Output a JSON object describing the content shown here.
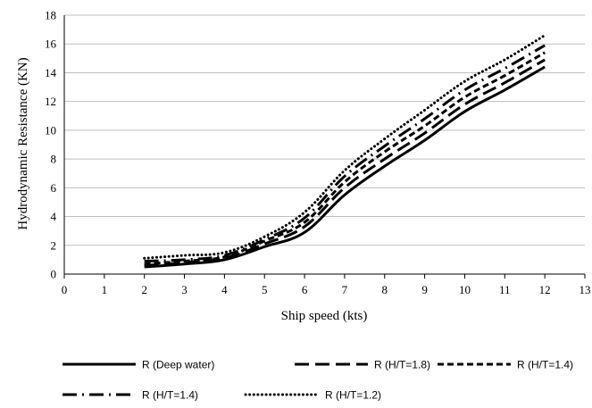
{
  "chart_data": {
    "type": "line",
    "title": "",
    "xlabel": "Ship speed (kts)",
    "ylabel": "Hydrodynamic Resistance (KN)",
    "xlim": [
      0,
      13
    ],
    "ylim": [
      0,
      18
    ],
    "x_ticks": [
      "0",
      "1",
      "2",
      "3",
      "4",
      "5",
      "6",
      "7",
      "8",
      "9",
      "10",
      "11",
      "12",
      "13"
    ],
    "y_ticks": [
      "0",
      "2",
      "4",
      "6",
      "8",
      "10",
      "12",
      "14",
      "16",
      "18"
    ],
    "grid": "horizontal",
    "legend_position": "bottom",
    "x": [
      2,
      3,
      4,
      5,
      6,
      7,
      8,
      9,
      10,
      11,
      12
    ],
    "series": [
      {
        "name": "R (Deep water)",
        "style": "solid",
        "values": [
          0.5,
          0.7,
          1.0,
          1.9,
          2.9,
          5.5,
          7.5,
          9.3,
          11.3,
          12.8,
          14.4
        ]
      },
      {
        "name": "R (H/T=1.8)",
        "style": "long-dash",
        "values": [
          0.6,
          0.8,
          1.1,
          2.1,
          3.3,
          6.0,
          8.0,
          9.8,
          11.8,
          13.3,
          14.9
        ]
      },
      {
        "name": "R (H/T=1.4)",
        "style": "short-dash",
        "values": [
          0.7,
          0.9,
          1.2,
          2.3,
          3.6,
          6.4,
          8.5,
          10.3,
          12.3,
          13.8,
          15.4
        ]
      },
      {
        "name": "R (H/T=1.4)",
        "style": "dash-dot",
        "values": [
          0.9,
          1.0,
          1.3,
          2.4,
          3.9,
          6.8,
          8.9,
          10.8,
          12.8,
          14.3,
          15.9
        ]
      },
      {
        "name": "R (H/T=1.2)",
        "style": "dotted",
        "values": [
          1.1,
          1.3,
          1.5,
          2.6,
          4.3,
          7.2,
          9.4,
          11.4,
          13.4,
          14.9,
          16.6
        ]
      }
    ],
    "colors": {
      "series": "#000000",
      "grid": "#bfbfbf",
      "axis": "#000000"
    }
  }
}
